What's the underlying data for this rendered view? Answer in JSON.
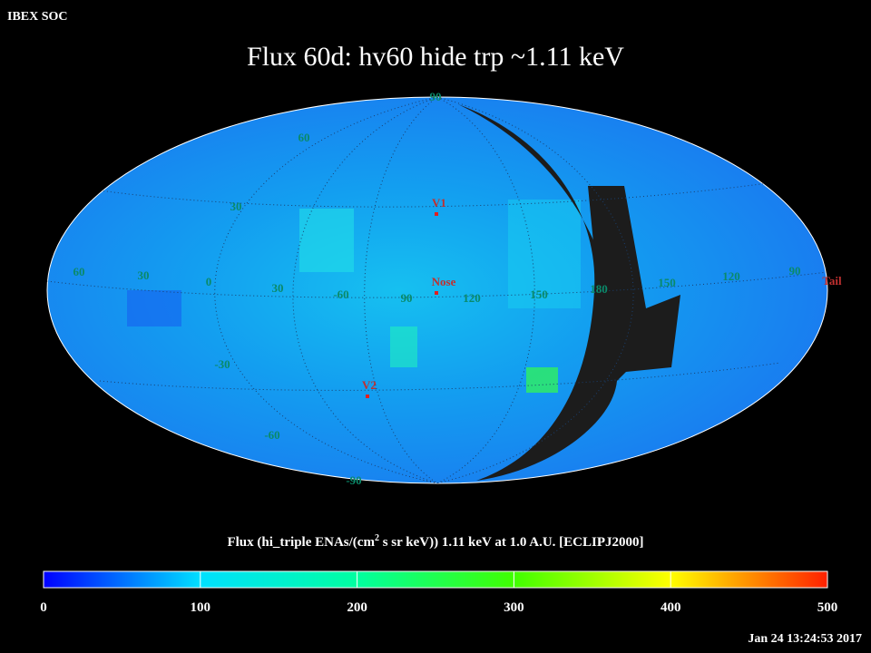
{
  "header": "IBEX SOC",
  "title": "Flux   60d: hv60 hide trp ~1.11 keV",
  "map": {
    "longitude_labels": [
      "60",
      "30",
      "0",
      "30",
      "-60",
      "90",
      "120",
      "150",
      "180",
      "150",
      "120",
      "90"
    ],
    "latitude_labels": [
      "90",
      "60",
      "30",
      "-30",
      "-60",
      "-90"
    ],
    "markers": [
      "V1",
      "Nose",
      "V2",
      "Tail"
    ]
  },
  "colorbar": {
    "label_parts": [
      "Flux (hi_triple ENAs/(cm",
      "2",
      " s sr keV))  1.11 keV at 1.0 A.U. [ECLIPJ2000]"
    ],
    "range": [
      0,
      500
    ],
    "ticks": [
      0,
      100,
      200,
      300,
      400,
      500
    ]
  },
  "timestamp": "Jan 24 13:24:53 2017"
}
